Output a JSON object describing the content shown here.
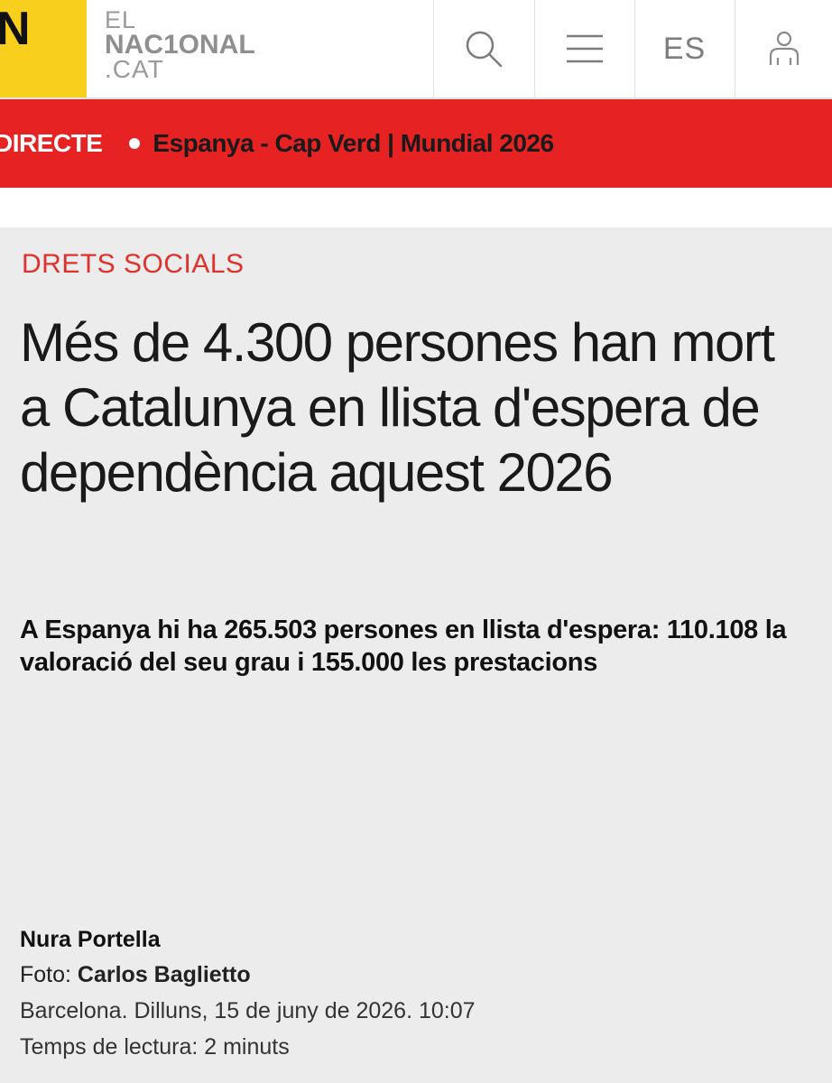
{
  "header": {
    "logo_letter": "N",
    "wordmark": {
      "line1": "EL",
      "line2": "NAC1ONAL",
      "line3": ".CAT"
    },
    "search_icon": "search-icon",
    "menu_icon": "hamburger-menu-icon",
    "language": "ES",
    "user_icon": "user-icon",
    "brand_color": "#f7cf1c"
  },
  "breaking": {
    "label": "DIRECTE",
    "headline": "Espanya - Cap Verd | Mundial 2026",
    "bar_color": "#e62222"
  },
  "article": {
    "section": "DRETS SOCIALS",
    "section_color": "#e0312c",
    "headline": "Més de 4.300 persones han mort a Catalunya en llista d'espera de dependència aquest 2026",
    "subheadline": "A Espanya hi ha 265.503 persones en llista d'espera: 110.108 la valoració del seu grau i 155.000 les prestacions",
    "author": "Nura Portella",
    "photo_prefix": "Foto:",
    "photographer": "Carlos Baglietto",
    "dateline": "Barcelona. Dilluns, 15 de juny de 2026. 10:07",
    "reading_time": "Temps de lectura: 2 minuts"
  }
}
